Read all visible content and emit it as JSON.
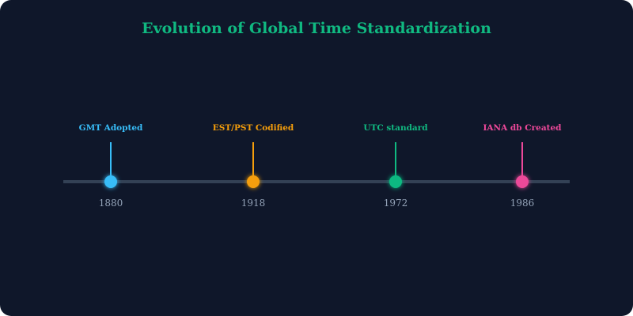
{
  "title": "Evolution of Global Time Standardization",
  "colors": {
    "background": "#0f172a",
    "title": "#10b981",
    "axis": "#334155",
    "year": "#94a3b8"
  },
  "events": [
    {
      "year": "1880",
      "label": "GMT Adopted",
      "color": "#38bdf8"
    },
    {
      "year": "1918",
      "label": "EST/PST Codified",
      "color": "#f59e0b"
    },
    {
      "year": "1972",
      "label": "UTC standard",
      "color": "#10b981"
    },
    {
      "year": "1986",
      "label": "IANA db Created",
      "color": "#ec4899"
    }
  ]
}
